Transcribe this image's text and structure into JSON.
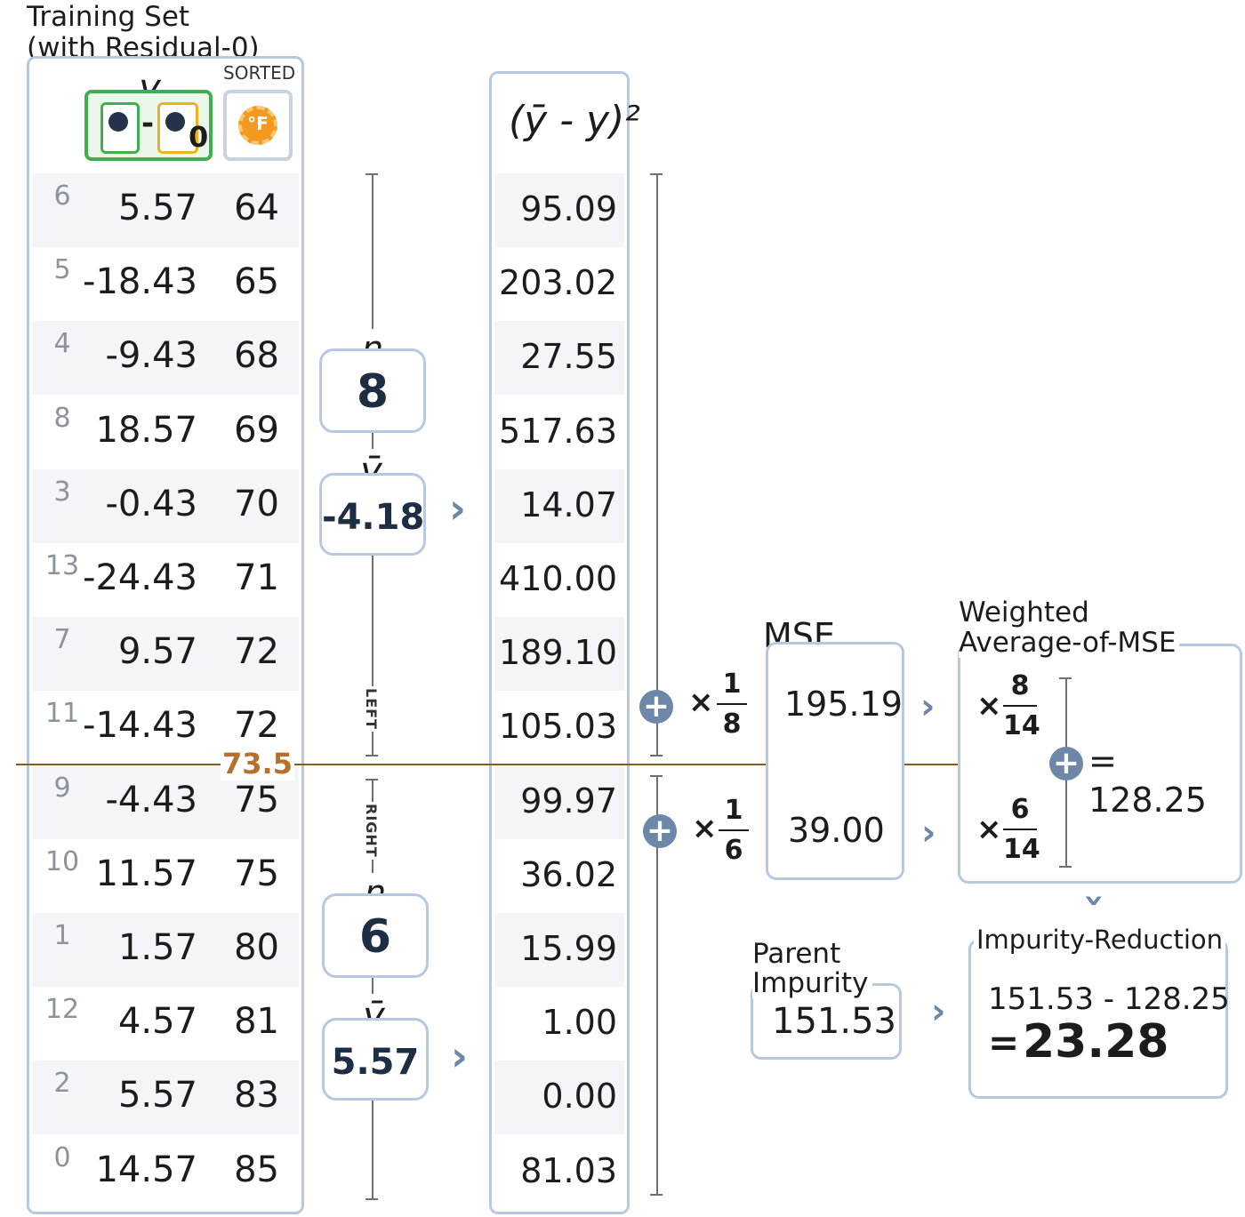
{
  "title_line1": "Training Set",
  "title_line2": "(with Residual-0)",
  "header": {
    "y_label": "y",
    "minus": "-",
    "zero": "0",
    "sorted": "SORTED",
    "temp_icon_letter": "°F"
  },
  "rows": [
    {
      "idx": "6",
      "res": "5.57",
      "temp": "64",
      "sq": "95.09"
    },
    {
      "idx": "5",
      "res": "-18.43",
      "temp": "65",
      "sq": "203.02"
    },
    {
      "idx": "4",
      "res": "-9.43",
      "temp": "68",
      "sq": "27.55"
    },
    {
      "idx": "8",
      "res": "18.57",
      "temp": "69",
      "sq": "517.63"
    },
    {
      "idx": "3",
      "res": "-0.43",
      "temp": "70",
      "sq": "14.07"
    },
    {
      "idx": "13",
      "res": "-24.43",
      "temp": "71",
      "sq": "410.00"
    },
    {
      "idx": "7",
      "res": "9.57",
      "temp": "72",
      "sq": "189.10"
    },
    {
      "idx": "11",
      "res": "-14.43",
      "temp": "72",
      "sq": "105.03"
    },
    {
      "idx": "9",
      "res": "-4.43",
      "temp": "75",
      "sq": "99.97"
    },
    {
      "idx": "10",
      "res": "11.57",
      "temp": "75",
      "sq": "36.02"
    },
    {
      "idx": "1",
      "res": "1.57",
      "temp": "80",
      "sq": "15.99"
    },
    {
      "idx": "12",
      "res": "4.57",
      "temp": "81",
      "sq": "1.00"
    },
    {
      "idx": "2",
      "res": "5.57",
      "temp": "83",
      "sq": "0.00"
    },
    {
      "idx": "0",
      "res": "14.57",
      "temp": "85",
      "sq": "81.03"
    }
  ],
  "split": {
    "value": "73.5",
    "left_label": "LEFT",
    "right_label": "RIGHT"
  },
  "left": {
    "n_label": "n",
    "n": "8",
    "ybar_label": "ȳ",
    "ybar": "-4.18"
  },
  "right": {
    "n_label": "n",
    "n": "6",
    "ybar_label": "ȳ",
    "ybar": "5.57"
  },
  "sq_header": "(ȳ - y)²",
  "mse": {
    "title": "MSE",
    "left_mult": "×",
    "left_num": "1",
    "left_den": "8",
    "left_value": "195.19",
    "right_mult": "×",
    "right_num": "1",
    "right_den": "6",
    "right_value": "39.00"
  },
  "weighted": {
    "title_line1": "Weighted",
    "title_line2": "Average-of-MSE",
    "left_mult": "×",
    "left_num": "8",
    "left_den": "14",
    "right_mult": "×",
    "right_num": "6",
    "right_den": "14",
    "result": "= 128.25"
  },
  "parent": {
    "title_line1": "Parent",
    "title_line2": "Impurity",
    "value": "151.53"
  },
  "reduction": {
    "title": "Impurity-Reduction",
    "expr": "151.53 - 128.25",
    "result_eq": "=",
    "result": "23.28"
  },
  "colors": {
    "box_border": "#b7c8e0",
    "accent": "#6c87a8",
    "split_line": "#8a5a1c",
    "split_text": "#b5712b",
    "icon_green": "#3fae4c",
    "icon_yellow": "#e8b31b",
    "icon_orange": "#f39a1e"
  }
}
